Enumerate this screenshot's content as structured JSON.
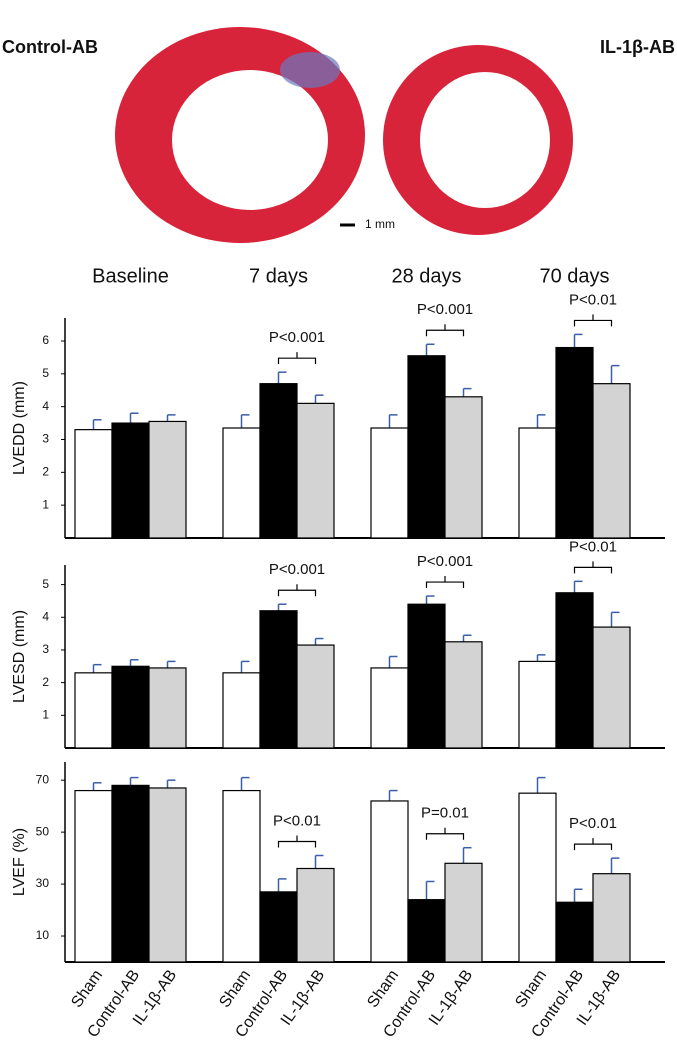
{
  "image_labels": [
    "Control-AB",
    "IL-1β-AB"
  ],
  "scale_bar": "1 mm",
  "chart_data": [
    {
      "type": "bar",
      "y_label": "LVEDD (mm)",
      "categories": [
        "Baseline",
        "7 days",
        "28 days",
        "70 days"
      ],
      "ylim": [
        0,
        6.7
      ],
      "yticks": [
        1,
        2,
        3,
        4,
        5,
        6
      ],
      "series": [
        {
          "color": "#ffffff",
          "values": [
            3.3,
            3.35,
            3.35,
            3.35
          ],
          "errors": [
            0.3,
            0.4,
            0.4,
            0.4
          ]
        },
        {
          "color": "#000000",
          "values": [
            3.5,
            4.7,
            5.55,
            5.8
          ],
          "errors": [
            0.3,
            0.35,
            0.35,
            0.4
          ]
        },
        {
          "color": "#d3d3d3",
          "values": [
            3.55,
            4.1,
            4.3,
            4.7
          ],
          "errors": [
            0.2,
            0.25,
            0.25,
            0.55
          ]
        }
      ],
      "annotations": [
        null,
        "P<0.001",
        "P<0.001",
        "P<0.01"
      ]
    },
    {
      "type": "bar",
      "y_label": "LVESD (mm)",
      "ylim": [
        0,
        5.6
      ],
      "yticks": [
        1,
        2,
        3,
        4,
        5
      ],
      "series": [
        {
          "color": "#ffffff",
          "values": [
            2.3,
            2.3,
            2.45,
            2.65
          ],
          "errors": [
            0.25,
            0.35,
            0.35,
            0.2
          ]
        },
        {
          "color": "#000000",
          "values": [
            2.5,
            4.2,
            4.4,
            4.75
          ],
          "errors": [
            0.2,
            0.2,
            0.25,
            0.35
          ]
        },
        {
          "color": "#d3d3d3",
          "values": [
            2.45,
            3.15,
            3.25,
            3.7
          ],
          "errors": [
            0.2,
            0.2,
            0.2,
            0.45
          ]
        }
      ],
      "annotations": [
        null,
        "P<0.001",
        "P<0.001",
        "P<0.01"
      ]
    },
    {
      "type": "bar",
      "y_label": "LVEF (%)",
      "ylim": [
        0,
        77
      ],
      "yticks": [
        10,
        30,
        50,
        70
      ],
      "series": [
        {
          "name": "Sham",
          "color": "#ffffff",
          "values": [
            66,
            66,
            62,
            65
          ],
          "errors": [
            3,
            5,
            4,
            6
          ]
        },
        {
          "name": "Control-AB",
          "color": "#000000",
          "values": [
            68,
            27,
            24,
            23
          ],
          "errors": [
            3,
            5,
            7,
            5
          ]
        },
        {
          "name": "IL-1β-AB",
          "color": "#d3d3d3",
          "values": [
            67,
            36,
            38,
            34
          ],
          "errors": [
            3,
            5,
            6,
            6
          ]
        }
      ],
      "annotations": [
        null,
        "P<0.01",
        "P=0.01",
        "P<0.01"
      ]
    }
  ]
}
